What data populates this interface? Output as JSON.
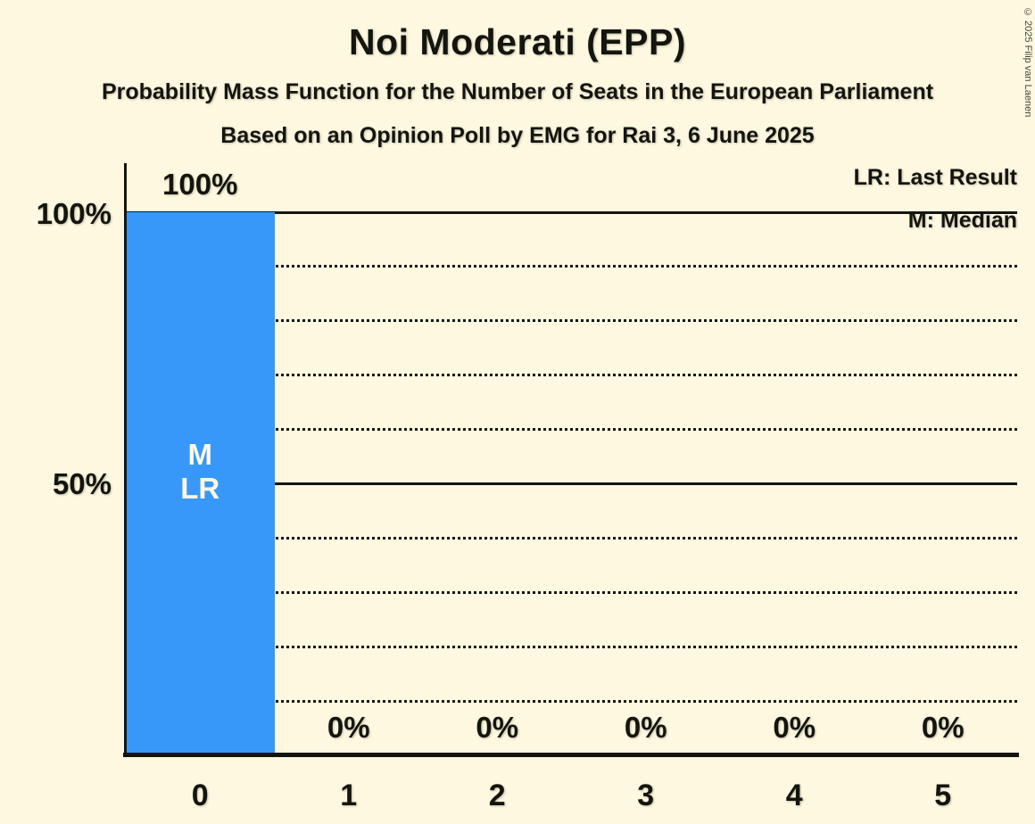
{
  "header": {
    "title": "Noi Moderati (EPP)",
    "subtitle": "Probability Mass Function for the Number of Seats in the European Parliament",
    "poll_line": "Based on an Opinion Poll by EMG for Rai 3, 6 June 2025"
  },
  "copyright": "© 2025 Filip van Laenen",
  "legend": {
    "last_result": "LR: Last Result",
    "median": "M: Median"
  },
  "colors": {
    "background": "#FDF8DF",
    "bar": "#3898FA",
    "ink": "#15150F",
    "bar_inner_label": "#FDF8DF"
  },
  "chart_data": {
    "type": "bar",
    "title": "Noi Moderati (EPP)",
    "categories": [
      "0",
      "1",
      "2",
      "3",
      "4",
      "5"
    ],
    "values": [
      100,
      0,
      0,
      0,
      0,
      0
    ],
    "value_labels": [
      "100%",
      "0%",
      "0%",
      "0%",
      "0%",
      "0%"
    ],
    "xlabel": "",
    "ylabel": "",
    "ylim": [
      0,
      100
    ],
    "y_ticks": [
      {
        "value": 100,
        "label": "100%"
      },
      {
        "value": 50,
        "label": "50%"
      }
    ],
    "solid_gridlines": [
      100,
      50
    ],
    "dotted_gridlines": [
      90,
      80,
      70,
      60,
      40,
      30,
      20,
      10
    ],
    "median_category_index": 0,
    "last_result_category_index": 0,
    "bar_annotations": {
      "0": [
        "M",
        "LR"
      ]
    },
    "legend_position": "top-right",
    "grid": "horizontal"
  }
}
